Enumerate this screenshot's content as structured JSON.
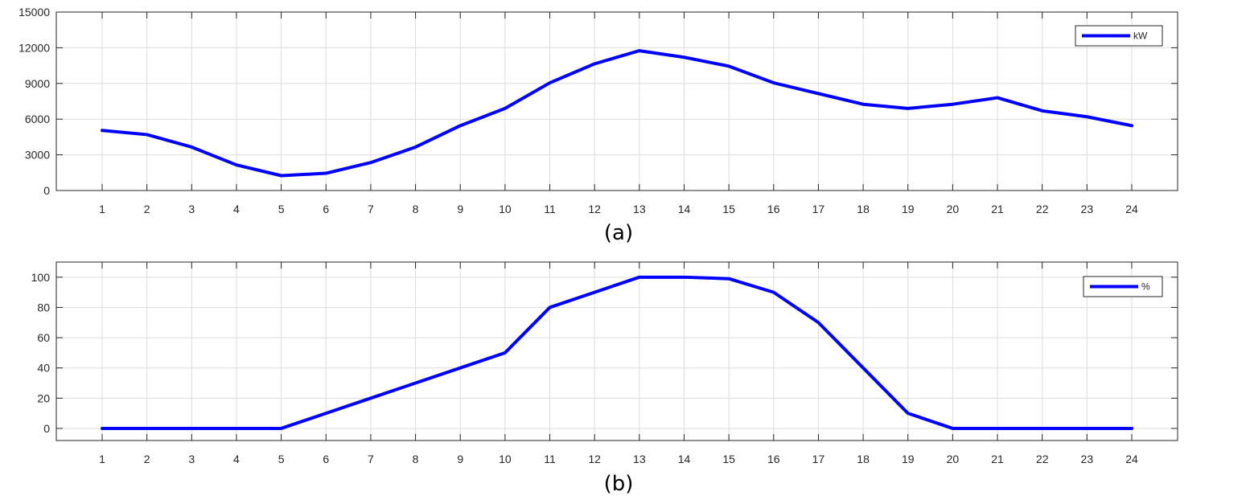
{
  "colors": {
    "line": "#0000ff",
    "grid": "#dcdcdc",
    "axis": "#262626",
    "background": "#ffffff"
  },
  "chart_data": [
    {
      "type": "line",
      "caption": "(a)",
      "x": [
        1,
        2,
        3,
        4,
        5,
        6,
        7,
        8,
        9,
        10,
        11,
        12,
        13,
        14,
        15,
        16,
        17,
        18,
        19,
        20,
        21,
        22,
        23,
        24
      ],
      "series": [
        {
          "name": "kW",
          "values": [
            5050,
            4700,
            3650,
            2150,
            1250,
            1450,
            2350,
            3650,
            5450,
            6900,
            9050,
            10650,
            11750,
            11200,
            10450,
            9050,
            8150,
            7250,
            6900,
            7250,
            7800,
            6700,
            6200,
            5450
          ]
        }
      ],
      "ylim": [
        0,
        15000
      ],
      "yticks": [
        0,
        3000,
        6000,
        9000,
        12000,
        15000
      ],
      "grid": true,
      "legend": "top-right"
    },
    {
      "type": "line",
      "caption": "(b)",
      "x": [
        1,
        2,
        3,
        4,
        5,
        6,
        7,
        8,
        9,
        10,
        11,
        12,
        13,
        14,
        15,
        16,
        17,
        18,
        19,
        20,
        21,
        22,
        23,
        24
      ],
      "series": [
        {
          "name": "%",
          "values": [
            0,
            0,
            0,
            0,
            0,
            10,
            20,
            30,
            40,
            50,
            80,
            90,
            100,
            100,
            99,
            90,
            70,
            40,
            10,
            0,
            0,
            0,
            0,
            0
          ]
        }
      ],
      "ylim": [
        -8,
        110
      ],
      "yticks": [
        0,
        20,
        40,
        60,
        80,
        100
      ],
      "grid": true,
      "legend": "top-right"
    }
  ]
}
